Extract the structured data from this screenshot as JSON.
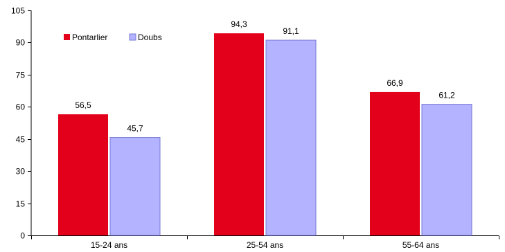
{
  "chart_data": {
    "type": "bar",
    "categories": [
      "15-24 ans",
      "25-54 ans",
      "55-64 ans"
    ],
    "series": [
      {
        "name": "Pontarlier",
        "values": [
          56.5,
          94.3,
          66.9
        ],
        "value_labels": [
          "56,5",
          "94,3",
          "66,9"
        ],
        "color": "#e3001b"
      },
      {
        "name": "Doubs",
        "values": [
          45.7,
          91.1,
          61.2
        ],
        "value_labels": [
          "45,7",
          "91,1",
          "61,2"
        ],
        "color": "#b3b3ff",
        "stroke": "#7a7ad6"
      }
    ],
    "title": "",
    "xlabel": "",
    "ylabel": "",
    "ylim": [
      0,
      105
    ],
    "yticks": [
      0,
      15,
      30,
      45,
      60,
      75,
      90,
      105
    ],
    "grid": false,
    "legend_position": "top-left"
  }
}
